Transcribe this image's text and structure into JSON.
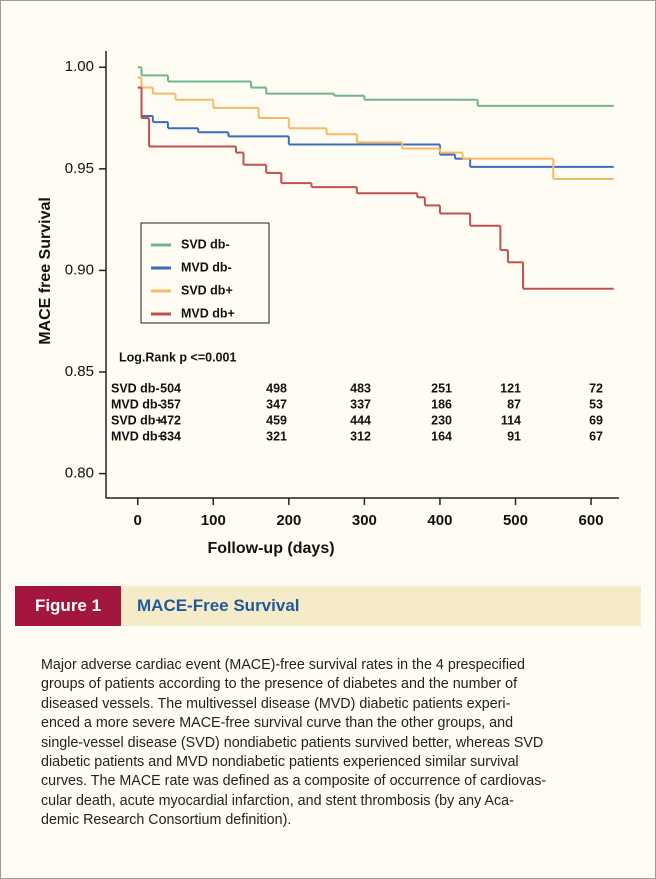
{
  "chart_data": {
    "type": "line",
    "drawstyle": "steps-post",
    "xlabel": "Follow-up (days)",
    "ylabel": "MACE free Survival",
    "xlim": [
      -42,
      637
    ],
    "ylim": [
      0.788,
      1.008
    ],
    "xticks": [
      0,
      100,
      200,
      300,
      400,
      500,
      600
    ],
    "yticks": [
      {
        "value": 0.8,
        "label": "0.80"
      },
      0.85,
      {
        "value": 0.9,
        "label": "0.90"
      },
      0.95,
      {
        "value": 1,
        "label": "1.00"
      }
    ],
    "legend": "center-left",
    "annotation": "Log.Rank p <=0.001",
    "series": [
      {
        "name": "SVD db-",
        "color": "#6fb58c",
        "x": [
          0,
          5,
          40,
          150,
          170,
          260,
          300,
          450,
          630
        ],
        "values": [
          1.0,
          0.996,
          0.993,
          0.99,
          0.987,
          0.986,
          0.984,
          0.981,
          0.981
        ]
      },
      {
        "name": "MVD db-",
        "color": "#3c6cc0",
        "x": [
          0,
          5,
          20,
          40,
          80,
          120,
          200,
          400,
          420,
          440,
          630
        ],
        "values": [
          0.99,
          0.976,
          0.973,
          0.97,
          0.968,
          0.966,
          0.962,
          0.957,
          0.955,
          0.951,
          0.951
        ]
      },
      {
        "name": "SVD db+",
        "color": "#f5b963",
        "x": [
          0,
          5,
          20,
          50,
          100,
          160,
          200,
          250,
          290,
          350,
          400,
          430,
          550,
          630
        ],
        "values": [
          0.995,
          0.99,
          0.987,
          0.984,
          0.98,
          0.975,
          0.97,
          0.967,
          0.963,
          0.96,
          0.958,
          0.955,
          0.945,
          0.945
        ]
      },
      {
        "name": "MVD db+",
        "color": "#c0504d",
        "x": [
          0,
          5,
          15,
          130,
          140,
          170,
          190,
          230,
          290,
          370,
          380,
          400,
          440,
          480,
          490,
          510,
          630
        ],
        "values": [
          0.99,
          0.975,
          0.961,
          0.958,
          0.952,
          0.948,
          0.943,
          0.941,
          0.938,
          0.936,
          0.932,
          0.928,
          0.922,
          0.91,
          0.904,
          0.891,
          0.891
        ]
      }
    ],
    "at_risk": [
      {
        "name": "SVD db-",
        "counts": [
          504,
          498,
          483,
          251,
          121,
          72
        ]
      },
      {
        "name": "MVD db-",
        "counts": [
          357,
          347,
          337,
          186,
          87,
          53
        ]
      },
      {
        "name": "SVD db+",
        "counts": [
          472,
          459,
          444,
          230,
          114,
          69
        ]
      },
      {
        "name": "MVD db+",
        "counts": [
          334,
          321,
          312,
          164,
          91,
          67
        ]
      }
    ]
  },
  "figure": {
    "label": "Figure 1",
    "title": "MACE-Free Survival",
    "caption": [
      "Major adverse cardiac event (MACE)-free survival rates in the 4 prespecified",
      "groups of patients according to the presence of diabetes and the number of",
      "diseased vessels. The multivessel disease (MVD) diabetic patients experi-",
      "enced a more severe MACE-free survival curve than the other groups, and",
      "single-vessel disease (SVD) nondiabetic patients survived better, whereas SVD",
      "diabetic patients and MVD nondiabetic patients experienced similar survival",
      "curves. The MACE rate was defined as a composite of occurrence of cardiovas-",
      "cular death, acute myocardial infarction, and stent thrombosis (by any Aca-",
      "demic Research Consortium definition)."
    ]
  }
}
